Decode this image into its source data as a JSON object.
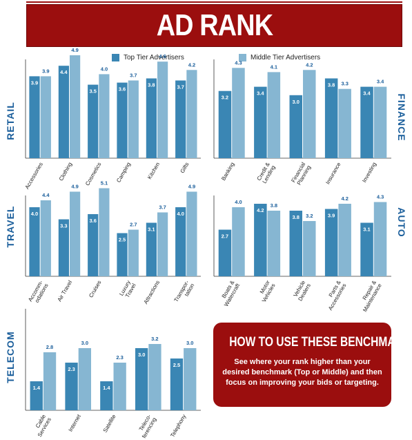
{
  "title": "AD RANK",
  "legend": {
    "top_label": "Top Tier Advertisers",
    "middle_label": "Middle Tier Advertisers"
  },
  "colors": {
    "top": "#3a86b4",
    "middle": "#86b6d2",
    "accent": "#9b0e0e",
    "section_label": "#1a5e9b"
  },
  "callout": {
    "title": "HOW TO USE THESE BENCHMARKS",
    "body": "See where your rank higher than your desired benchmark (Top or Middle) and then focus on improving your bids or targeting."
  },
  "chart_data": [
    {
      "type": "bar",
      "title": "RETAIL",
      "ylim": [
        0,
        5
      ],
      "categories": [
        "Accessories",
        "Clothing",
        "Cosmetics",
        "Camping",
        "Kitchen",
        "Gifts"
      ],
      "series": [
        {
          "name": "Top Tier Advertisers",
          "values": [
            3.9,
            4.4,
            3.5,
            3.6,
            3.8,
            3.7
          ]
        },
        {
          "name": "Middle Tier Advertisers",
          "values": [
            3.9,
            4.9,
            4.0,
            3.7,
            4.6,
            4.2
          ]
        }
      ]
    },
    {
      "type": "bar",
      "title": "FINANCE",
      "ylim": [
        0,
        5
      ],
      "categories": [
        "Banking",
        "Credit & Lending",
        "Financial Planning",
        "Insurance",
        "Investing"
      ],
      "series": [
        {
          "name": "Top Tier Advertisers",
          "values": [
            3.2,
            3.4,
            3.0,
            3.8,
            3.4
          ]
        },
        {
          "name": "Middle Tier Advertisers",
          "values": [
            4.3,
            4.1,
            4.2,
            3.3,
            3.4
          ]
        }
      ]
    },
    {
      "type": "bar",
      "title": "TRAVEL",
      "ylim": [
        0,
        5
      ],
      "categories": [
        "Accomm-odations",
        "Air Travel",
        "Cruises",
        "Luxury Travel",
        "Attractions",
        "Transpor-tation"
      ],
      "series": [
        {
          "name": "Top Tier Advertisers",
          "values": [
            4.0,
            3.3,
            3.6,
            2.5,
            3.1,
            4.0
          ]
        },
        {
          "name": "Middle Tier Advertisers",
          "values": [
            4.4,
            4.9,
            5.1,
            2.7,
            3.7,
            4.9
          ]
        }
      ]
    },
    {
      "type": "bar",
      "title": "AUTO",
      "ylim": [
        0,
        5
      ],
      "categories": [
        "Boats & Watercraft",
        "Motor Vehicles",
        "Vehicle Dealers",
        "Parts & Accessories",
        "Repair & Maintenance"
      ],
      "series": [
        {
          "name": "Top Tier Advertisers",
          "values": [
            2.7,
            4.2,
            3.8,
            3.9,
            3.1
          ]
        },
        {
          "name": "Middle Tier Advertisers",
          "values": [
            4.0,
            3.8,
            3.2,
            4.2,
            4.3
          ]
        }
      ]
    },
    {
      "type": "bar",
      "title": "TELECOM",
      "ylim": [
        0,
        5
      ],
      "categories": [
        "Cable Services",
        "Internet",
        "Satellite",
        "Teleco-ferencing",
        "Telephony"
      ],
      "series": [
        {
          "name": "Top Tier Advertisers",
          "values": [
            1.4,
            2.3,
            1.4,
            3.0,
            2.5
          ]
        },
        {
          "name": "Middle Tier Advertisers",
          "values": [
            2.8,
            3.0,
            2.3,
            3.2,
            3.0
          ]
        }
      ]
    }
  ]
}
